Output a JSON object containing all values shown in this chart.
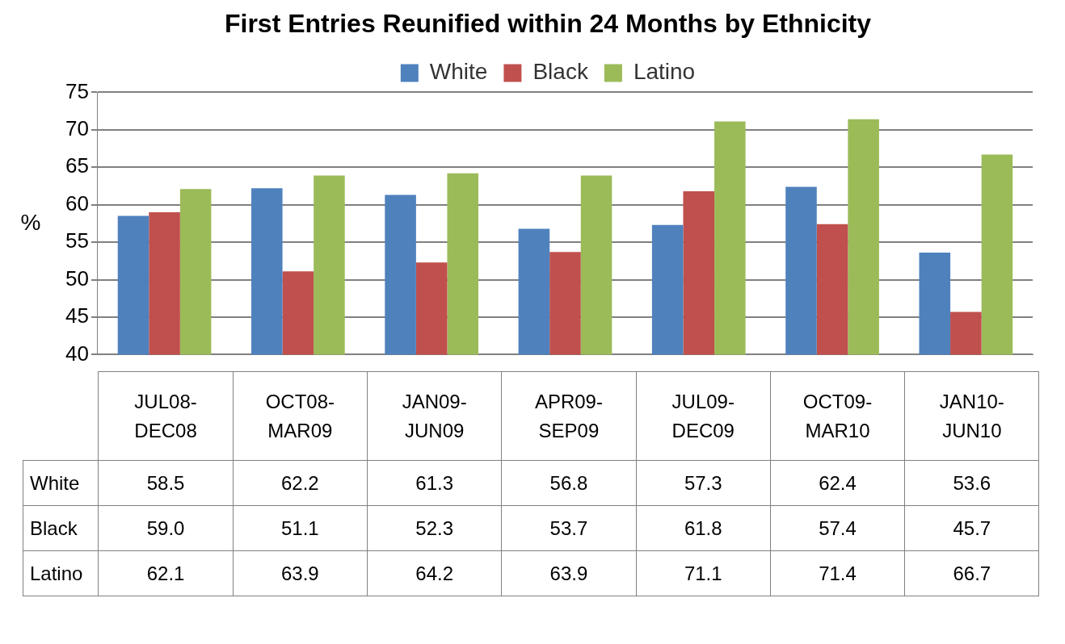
{
  "chart_data": {
    "type": "bar",
    "title": "First Entries Reunified within 24 Months by Ethnicity",
    "ylabel": "%",
    "categories": [
      "JUL08-DEC08",
      "OCT08-MAR09",
      "JAN09-JUN09",
      "APR09-SEP09",
      "JUL09-DEC09",
      "OCT09-MAR10",
      "JAN10-JUN10"
    ],
    "series": [
      {
        "name": "White",
        "color": "#4f81bd",
        "values": [
          58.5,
          62.2,
          61.3,
          56.8,
          57.3,
          62.4,
          53.6
        ],
        "value_labels": [
          "58.5",
          "62.2",
          "61.3",
          "56.8",
          "57.3",
          "62.4",
          "53.6"
        ]
      },
      {
        "name": "Black",
        "color": "#c0504d",
        "values": [
          59.0,
          51.1,
          52.3,
          53.7,
          61.8,
          57.4,
          45.7
        ],
        "value_labels": [
          "59.0",
          "51.1",
          "52.3",
          "53.7",
          "61.8",
          "57.4",
          "45.7"
        ]
      },
      {
        "name": "Latino",
        "color": "#9bbb59",
        "values": [
          62.1,
          63.9,
          64.2,
          63.9,
          71.1,
          71.4,
          66.7
        ],
        "value_labels": [
          "62.1",
          "63.9",
          "64.2",
          "63.9",
          "71.1",
          "71.4",
          "66.7"
        ]
      }
    ],
    "ylim": [
      40,
      75
    ],
    "yticks": [
      40,
      45,
      50,
      55,
      60,
      65,
      70,
      75
    ],
    "grid": "y",
    "legend": "top"
  }
}
